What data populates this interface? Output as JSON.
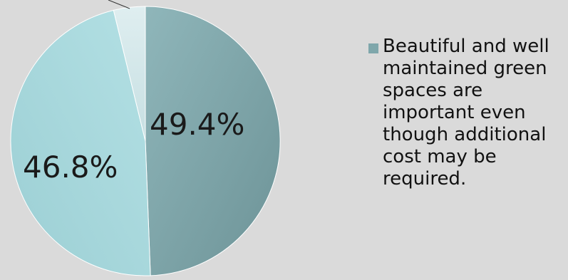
{
  "chart_data": {
    "type": "pie",
    "slices": [
      {
        "label": "49.4%",
        "value": 49.4,
        "color": "#7fa7ab",
        "legend": "Beautiful and well maintained green spaces are important even though additional cost may be required."
      },
      {
        "label": "46.8%",
        "value": 46.8,
        "color": "#a6d8dd"
      },
      {
        "value": 3.8,
        "color": "#d3e6e8"
      }
    ],
    "legend_placement": "right"
  }
}
